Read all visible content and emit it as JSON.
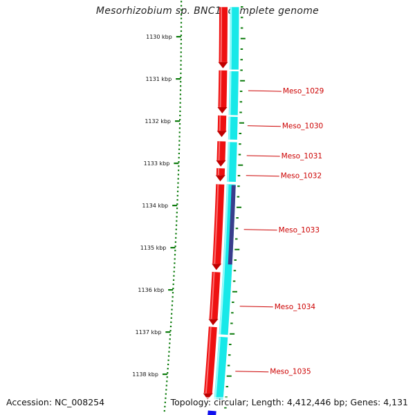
{
  "title": "Mesorhizobium sp. BNC1, complete genome",
  "footer": {
    "accession": "Accession: NC_008254",
    "summary": "Topology: circular; Length: 4,412,446 bp; Genes: 4,131"
  },
  "colors": {
    "forward_cds": "#ee1111",
    "reverse_cds": "#18e8e8",
    "highlight_cds": "#3a3d8c",
    "backbone": "#808080",
    "ticks": "#0a7a0a",
    "gene_label": "#cc0000",
    "blue_feature": "#1010ee"
  },
  "ticks": [
    {
      "position_kbp": 1130,
      "label": "1130 kbp"
    },
    {
      "position_kbp": 1131,
      "label": "1131 kbp"
    },
    {
      "position_kbp": 1132,
      "label": "1132 kbp"
    },
    {
      "position_kbp": 1133,
      "label": "1133 kbp"
    },
    {
      "position_kbp": 1134,
      "label": "1134 kbp"
    },
    {
      "position_kbp": 1135,
      "label": "1135 kbp"
    },
    {
      "position_kbp": 1136,
      "label": "1136 kbp"
    },
    {
      "position_kbp": 1137,
      "label": "1137 kbp"
    },
    {
      "position_kbp": 1138,
      "label": "1138 kbp"
    }
  ],
  "gene_labels": [
    {
      "name": "Meso_1029",
      "position_kbp": 1131.28
    },
    {
      "name": "Meso_1030",
      "position_kbp": 1132.11
    },
    {
      "name": "Meso_1031",
      "position_kbp": 1132.82
    },
    {
      "name": "Meso_1032",
      "position_kbp": 1133.29
    },
    {
      "name": "Meso_1033",
      "position_kbp": 1134.57
    },
    {
      "name": "Meso_1034",
      "position_kbp": 1136.39
    },
    {
      "name": "Meso_1035",
      "position_kbp": 1137.93
    }
  ],
  "forward_genes": [
    {
      "start_kbp": 1129.3,
      "end_kbp": 1130.75
    },
    {
      "start_kbp": 1130.8,
      "end_kbp": 1131.82
    },
    {
      "start_kbp": 1131.87,
      "end_kbp": 1132.38
    },
    {
      "start_kbp": 1132.48,
      "end_kbp": 1133.08
    },
    {
      "start_kbp": 1133.12,
      "end_kbp": 1133.43
    },
    {
      "start_kbp": 1133.5,
      "end_kbp": 1135.53
    },
    {
      "start_kbp": 1135.58,
      "end_kbp": 1136.84
    },
    {
      "start_kbp": 1136.88,
      "end_kbp": 1138.6
    }
  ],
  "reverse_genes": [
    {
      "start_kbp": 1129.3,
      "end_kbp": 1130.78
    },
    {
      "start_kbp": 1130.82,
      "end_kbp": 1131.86
    },
    {
      "start_kbp": 1131.9,
      "end_kbp": 1132.44
    },
    {
      "start_kbp": 1132.5,
      "end_kbp": 1133.44
    },
    {
      "start_kbp": 1133.5,
      "end_kbp": 1137.06
    },
    {
      "start_kbp": 1137.12,
      "end_kbp": 1138.6
    }
  ],
  "highlight_genes": [
    {
      "start_kbp": 1133.52,
      "end_kbp": 1135.4
    }
  ]
}
